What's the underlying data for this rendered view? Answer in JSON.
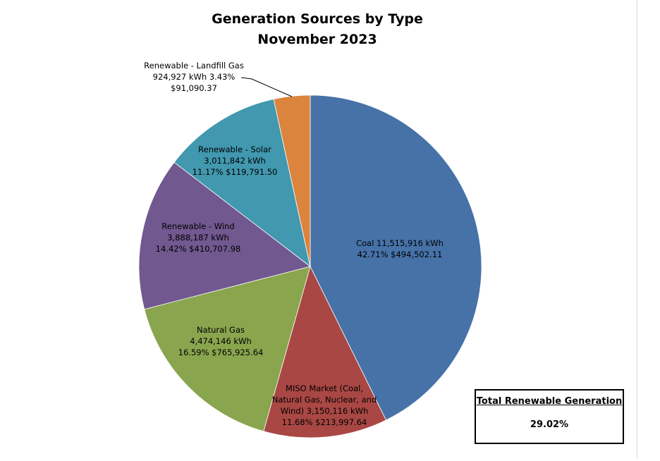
{
  "chart_data": {
    "type": "pie",
    "title": [
      "Generation Sources by Type",
      "November 2023"
    ],
    "start": "top",
    "direction": "clockwise",
    "slices": [
      {
        "name": "Coal",
        "kwh": 11515916,
        "percent": 42.71,
        "cost": 494502.11,
        "color": "#4672a8",
        "label_lines": [
          "Coal  11,515,916   kWh",
          "42.71%  $494,502.11"
        ]
      },
      {
        "name": "MISO Market (Coal, Natural Gas, Nuclear, and Wind)",
        "kwh": 3150116,
        "percent": 11.68,
        "cost": 213997.64,
        "color": "#a94744",
        "label_lines": [
          "MISO Market (Coal,",
          "Natural Gas, Nuclear, and",
          "Wind)  3,150,116   kWh",
          "11.68%  $213,997.64"
        ]
      },
      {
        "name": "Natural Gas",
        "kwh": 4474146,
        "percent": 16.59,
        "cost": 765925.64,
        "color": "#89a54e",
        "label_lines": [
          "Natural Gas",
          "4,474,146   kWh",
          "16.59%  $765,925.64"
        ]
      },
      {
        "name": "Renewable - Wind",
        "kwh": 3888187,
        "percent": 14.42,
        "cost": 410707.98,
        "color": "#71588f",
        "label_lines": [
          "Renewable - Wind",
          "3,888,187   kWh",
          "14.42%  $410,707.98"
        ]
      },
      {
        "name": "Renewable - Solar",
        "kwh": 3011842,
        "percent": 11.17,
        "cost": 119791.5,
        "color": "#4198af",
        "label_lines": [
          "Renewable - Solar",
          "3,011,842   kWh",
          "11.17%  $119,791.50"
        ]
      },
      {
        "name": "Renewable - Landfill Gas",
        "kwh": 924927,
        "percent": 3.43,
        "cost": 91090.37,
        "color": "#db843d",
        "label_lines": [
          "Renewable - Landfill Gas",
          "924,927   kWh  3.43%",
          "$91,090.37"
        ]
      }
    ]
  },
  "summary_box": {
    "heading": "Total Renewable Generation",
    "value": "29.02%"
  }
}
